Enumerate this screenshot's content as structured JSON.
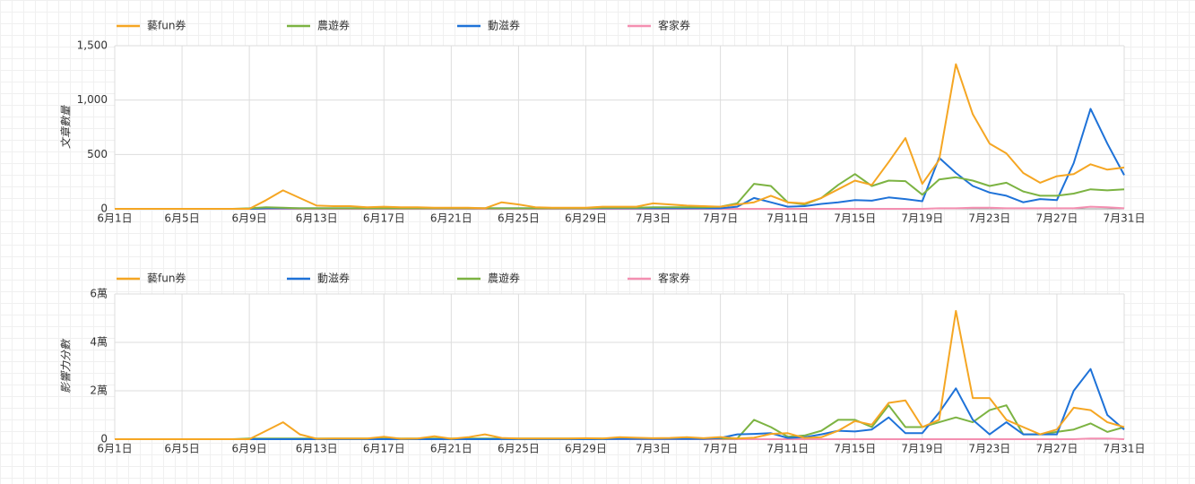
{
  "chart_data": [
    {
      "type": "line",
      "y_label": "文章數量",
      "categories": [
        "6月1日",
        null,
        null,
        null,
        "6月5日",
        null,
        null,
        null,
        "6月9日",
        null,
        null,
        null,
        "6月13日",
        null,
        null,
        null,
        "6月17日",
        null,
        null,
        null,
        "6月21日",
        null,
        null,
        null,
        "6月25日",
        null,
        null,
        null,
        "6月29日",
        null,
        null,
        null,
        "7月3日",
        null,
        null,
        null,
        "7月7日",
        null,
        null,
        null,
        "7月11日",
        null,
        null,
        null,
        "7月15日",
        null,
        null,
        null,
        "7月19日",
        null,
        null,
        null,
        "7月23日",
        null,
        null,
        null,
        "7月27日",
        null,
        null,
        null,
        "7月31日"
      ],
      "ylim": [
        0,
        1500
      ],
      "yticks": [
        0,
        {
          "value": 500,
          "label": "500"
        },
        {
          "value": 1000,
          "label": "1,000"
        },
        {
          "value": 1500,
          "label": "1,500"
        }
      ],
      "grid": true,
      "series": [
        {
          "name": "藝fun券",
          "color": "#f5a623",
          "values": [
            0,
            0,
            0,
            0,
            0,
            0,
            0,
            0,
            0,
            80,
            170,
            100,
            30,
            25,
            25,
            15,
            20,
            15,
            15,
            10,
            10,
            10,
            5,
            60,
            40,
            15,
            10,
            10,
            10,
            20,
            20,
            20,
            50,
            40,
            30,
            25,
            20,
            40,
            60,
            120,
            60,
            50,
            100,
            180,
            260,
            220,
            430,
            650,
            230,
            450,
            1330,
            870,
            600,
            510,
            330,
            240,
            300,
            320,
            410,
            360,
            380
          ]
        },
        {
          "name": "農遊券",
          "color": "#7cb342",
          "values": [
            0,
            0,
            0,
            0,
            0,
            0,
            0,
            0,
            5,
            15,
            10,
            5,
            5,
            5,
            5,
            5,
            5,
            5,
            5,
            5,
            5,
            5,
            5,
            5,
            5,
            5,
            5,
            5,
            5,
            10,
            10,
            10,
            15,
            15,
            15,
            15,
            20,
            50,
            230,
            210,
            60,
            40,
            100,
            220,
            320,
            210,
            260,
            255,
            130,
            270,
            290,
            260,
            210,
            240,
            160,
            120,
            120,
            140,
            180,
            170,
            180
          ]
        },
        {
          "name": "動滋券",
          "color": "#1e72d8",
          "values": [
            0,
            0,
            0,
            0,
            0,
            0,
            0,
            0,
            0,
            5,
            5,
            5,
            5,
            5,
            5,
            5,
            5,
            5,
            5,
            5,
            5,
            5,
            5,
            5,
            5,
            5,
            5,
            5,
            5,
            5,
            5,
            5,
            5,
            5,
            5,
            5,
            5,
            20,
            100,
            60,
            20,
            25,
            45,
            60,
            80,
            75,
            105,
            90,
            70,
            470,
            330,
            210,
            150,
            120,
            60,
            90,
            80,
            420,
            920,
            600,
            310
          ]
        },
        {
          "name": "客家券",
          "color": "#f48fb1",
          "values": [
            0,
            0,
            0,
            0,
            0,
            0,
            0,
            0,
            0,
            0,
            0,
            0,
            0,
            0,
            0,
            0,
            0,
            0,
            0,
            0,
            0,
            0,
            0,
            0,
            0,
            0,
            0,
            0,
            0,
            0,
            0,
            0,
            0,
            0,
            0,
            0,
            0,
            0,
            0,
            0,
            0,
            0,
            0,
            0,
            0,
            0,
            0,
            0,
            0,
            5,
            5,
            10,
            10,
            5,
            5,
            5,
            5,
            5,
            20,
            15,
            5
          ]
        }
      ]
    },
    {
      "type": "line",
      "y_label": "影響力分數",
      "categories": [
        "6月1日",
        null,
        null,
        null,
        "6月5日",
        null,
        null,
        null,
        "6月9日",
        null,
        null,
        null,
        "6月13日",
        null,
        null,
        null,
        "6月17日",
        null,
        null,
        null,
        "6月21日",
        null,
        null,
        null,
        "6月25日",
        null,
        null,
        null,
        "6月29日",
        null,
        null,
        null,
        "7月3日",
        null,
        null,
        null,
        "7月7日",
        null,
        null,
        null,
        "7月11日",
        null,
        null,
        null,
        "7月15日",
        null,
        null,
        null,
        "7月19日",
        null,
        null,
        null,
        "7月23日",
        null,
        null,
        null,
        "7月27日",
        null,
        null,
        null,
        "7月31日"
      ],
      "ylim": [
        0,
        60000
      ],
      "yticks": [
        0,
        {
          "value": 20000,
          "label": "2萬"
        },
        {
          "value": 40000,
          "label": "4萬"
        },
        {
          "value": 60000,
          "label": "6萬"
        }
      ],
      "grid": true,
      "series": [
        {
          "name": "藝fun券",
          "color": "#f5a623",
          "values": [
            0,
            0,
            0,
            0,
            0,
            0,
            0,
            0,
            0,
            3500,
            7000,
            2000,
            200,
            300,
            300,
            300,
            1000,
            200,
            300,
            1200,
            200,
            800,
            2000,
            500,
            300,
            300,
            300,
            300,
            400,
            300,
            800,
            600,
            400,
            500,
            800,
            400,
            900,
            300,
            600,
            2200,
            2500,
            500,
            800,
            3500,
            7500,
            6000,
            15000,
            16000,
            5000,
            8000,
            53000,
            17000,
            17000,
            8000,
            5000,
            2000,
            4000,
            13000,
            12000,
            7000,
            5000
          ]
        },
        {
          "name": "動滋券",
          "color": "#1e72d8",
          "values": [
            0,
            0,
            0,
            0,
            0,
            0,
            0,
            0,
            0,
            0,
            0,
            0,
            0,
            0,
            0,
            0,
            0,
            0,
            0,
            0,
            0,
            0,
            0,
            0,
            0,
            0,
            0,
            0,
            0,
            0,
            100,
            100,
            100,
            100,
            100,
            100,
            500,
            2000,
            2200,
            2500,
            500,
            800,
            2000,
            3500,
            3200,
            4000,
            9000,
            2500,
            2500,
            11000,
            21000,
            8000,
            2000,
            7000,
            2000,
            2000,
            2000,
            20000,
            29000,
            10000,
            4000
          ]
        },
        {
          "name": "農遊券",
          "color": "#7cb342",
          "values": [
            0,
            0,
            0,
            0,
            0,
            0,
            0,
            0,
            300,
            300,
            300,
            300,
            300,
            300,
            300,
            300,
            300,
            300,
            300,
            300,
            300,
            300,
            300,
            300,
            300,
            300,
            300,
            300,
            300,
            300,
            300,
            300,
            300,
            300,
            300,
            300,
            300,
            300,
            8000,
            5000,
            1000,
            1500,
            3500,
            8000,
            8000,
            5000,
            14000,
            5000,
            5000,
            7000,
            9000,
            7000,
            12000,
            14000,
            2000,
            2000,
            3000,
            4000,
            6500,
            3000,
            5000
          ]
        },
        {
          "name": "客家券",
          "color": "#f48fb1",
          "values": [
            0,
            0,
            0,
            0,
            0,
            0,
            0,
            0,
            0,
            0,
            0,
            0,
            0,
            0,
            0,
            0,
            0,
            0,
            0,
            0,
            0,
            0,
            0,
            0,
            0,
            0,
            0,
            0,
            0,
            0,
            0,
            0,
            0,
            0,
            0,
            0,
            0,
            0,
            0,
            0,
            0,
            0,
            0,
            0,
            0,
            0,
            0,
            0,
            0,
            0,
            0,
            0,
            0,
            0,
            0,
            0,
            0,
            0,
            300,
            300,
            0
          ]
        }
      ]
    }
  ]
}
